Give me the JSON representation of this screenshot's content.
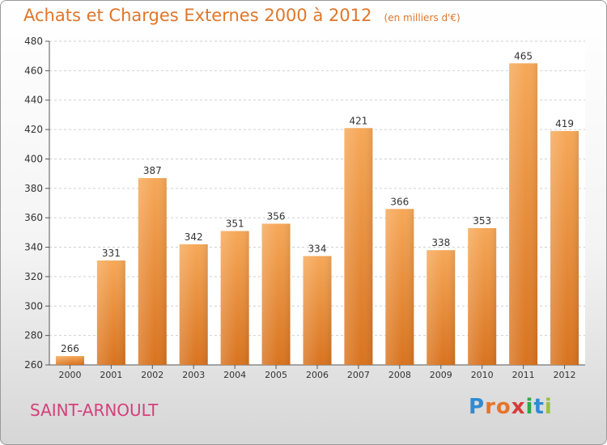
{
  "header": {
    "title": "Achats et Charges Externes 2000 à 2012",
    "unit": "(en milliers d'€)"
  },
  "footer": {
    "commune": "SAINT-ARNOULT",
    "logo_letters": [
      "P",
      "r",
      "o",
      "x",
      "i",
      "t",
      "i"
    ],
    "logo_colors": [
      "#2e8bd4",
      "#e8732a",
      "#e8732a",
      "#d63a3a",
      "#2ea84a",
      "#2e8bd4",
      "#9bc23c"
    ]
  },
  "colors": {
    "bar_top": "#f6a858",
    "bar_bottom": "#d8731f",
    "grid": "#d0d0d0",
    "text": "#333333"
  },
  "chart_data": {
    "type": "bar",
    "categories": [
      "2000",
      "2001",
      "2002",
      "2003",
      "2004",
      "2005",
      "2006",
      "2007",
      "2008",
      "2009",
      "2010",
      "2011",
      "2012"
    ],
    "values": [
      266,
      331,
      387,
      342,
      351,
      356,
      334,
      421,
      366,
      338,
      353,
      465,
      419
    ],
    "ylim": [
      260,
      480
    ],
    "yticks": [
      260,
      280,
      300,
      320,
      340,
      360,
      380,
      400,
      420,
      440,
      460,
      480
    ],
    "grid": true,
    "data_labels": true
  }
}
